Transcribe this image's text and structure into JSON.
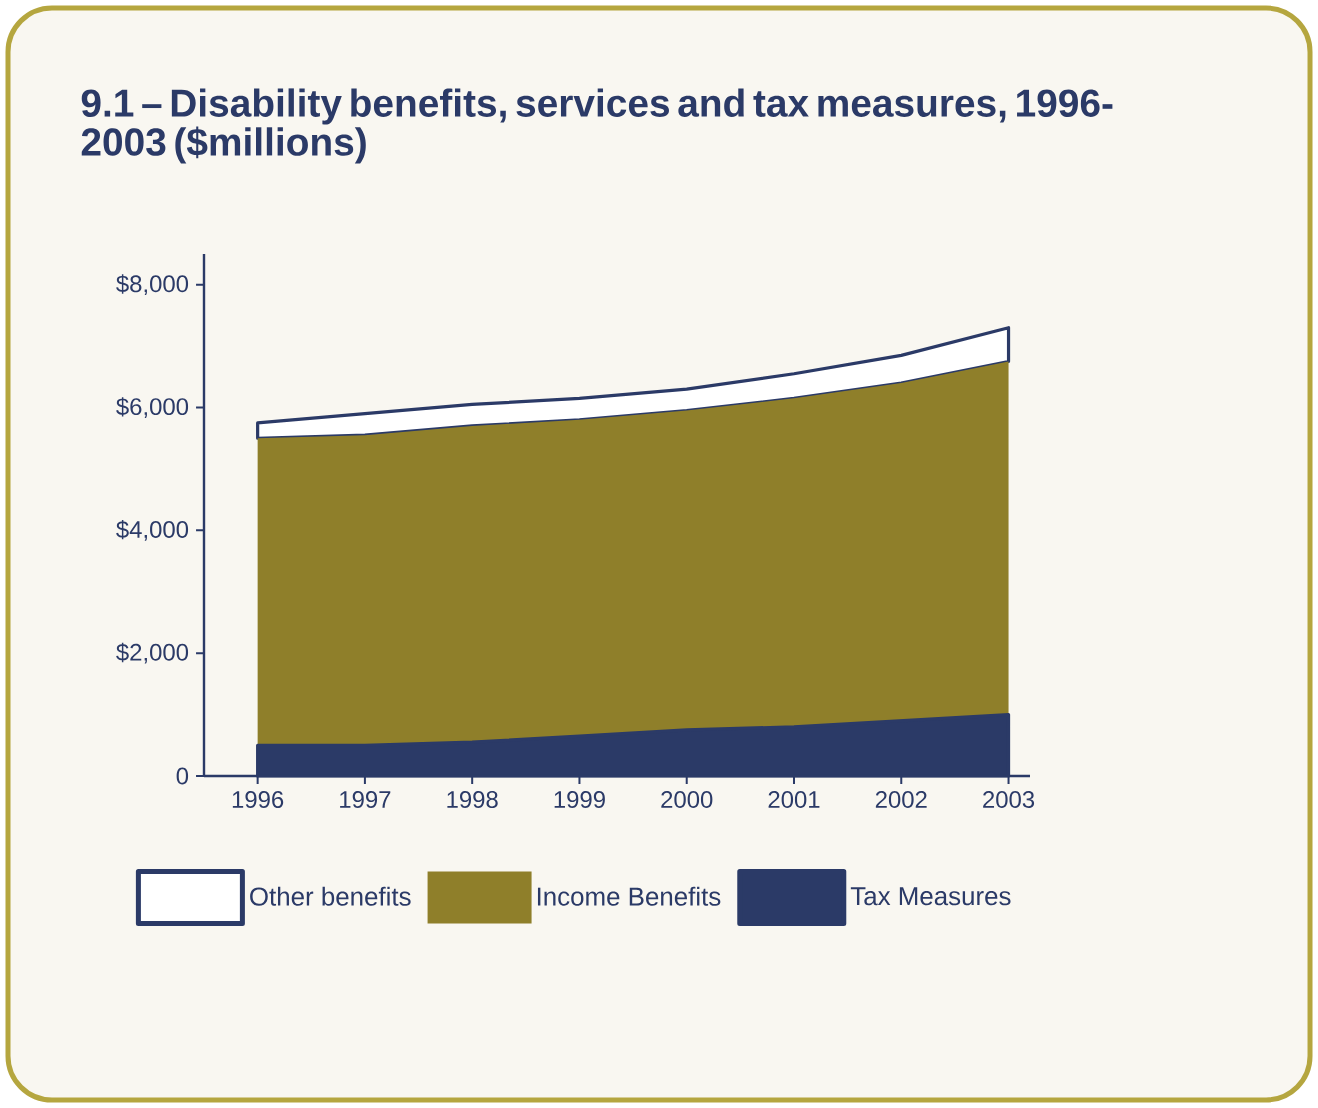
{
  "chart_data": {
    "type": "area",
    "stacked": true,
    "title": "9.1 – Disability benefits, services and tax measures, 1996-2003 ($millions)",
    "x": [
      1996,
      1997,
      1998,
      1999,
      2000,
      2001,
      2002,
      2003
    ],
    "series": [
      {
        "name": "Tax Measures",
        "color": "#2b3a67",
        "values": [
          500,
          500,
          550,
          650,
          750,
          800,
          900,
          1000
        ]
      },
      {
        "name": "Income Benefits",
        "color": "#8f7f2a",
        "values": [
          5000,
          5050,
          5150,
          5150,
          5200,
          5350,
          5500,
          5750
        ]
      },
      {
        "name": "Other benefits",
        "color": "#ffffff",
        "values": [
          250,
          350,
          350,
          350,
          350,
          400,
          450,
          550
        ]
      }
    ],
    "xlim": [
      1995.5,
      2003.2
    ],
    "ylim": [
      0,
      8500
    ],
    "xticks": [
      1996,
      1997,
      1998,
      1999,
      2000,
      2001,
      2002,
      2003
    ],
    "yticks": [
      0,
      {
        "value": 2000,
        "label": "$2,000"
      },
      {
        "value": 4000,
        "label": "$4,000"
      },
      {
        "value": 6000,
        "label": "$6,000"
      },
      {
        "value": 8000,
        "label": "$8,000"
      }
    ],
    "grid": false,
    "legend": "bottom"
  }
}
